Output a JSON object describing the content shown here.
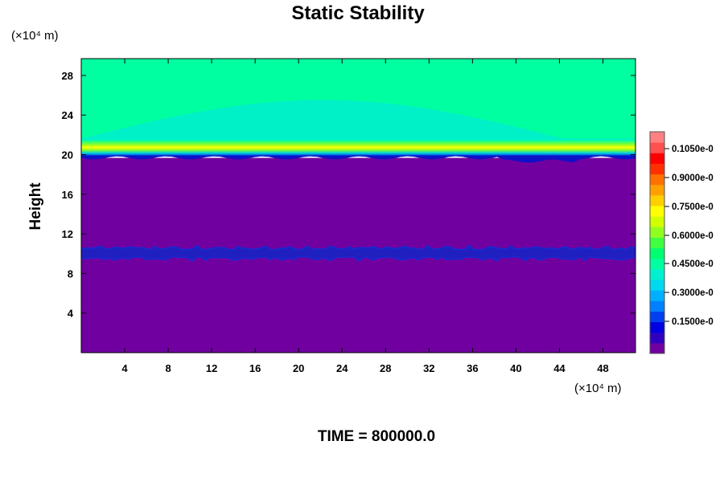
{
  "chart_data": {
    "type": "heatmap",
    "title": "Static Stability",
    "ylabel": "Height",
    "x_unit": "(×10⁴ m)",
    "y_unit": "(×10⁴ m)",
    "footer": "TIME = 800000.0",
    "xlim": [
      0,
      51
    ],
    "ylim": [
      0,
      29.7
    ],
    "x_ticks": [
      4,
      8,
      12,
      16,
      20,
      24,
      28,
      32,
      36,
      40,
      44,
      48
    ],
    "y_ticks": [
      4,
      8,
      12,
      16,
      20,
      24,
      28
    ],
    "colorbar": {
      "labels": [
        "0.1050e-0",
        "0.9000e-0",
        "0.7500e-0",
        "0.6000e-0",
        "0.4500e-0",
        "0.3000e-0",
        "0.1500e-0"
      ],
      "colors": [
        "#7000a0",
        "#3000c0",
        "#0000e0",
        "#0040f0",
        "#0080ff",
        "#00b0ff",
        "#00d8f0",
        "#00f0d0",
        "#00ffa0",
        "#00ff70",
        "#40ff40",
        "#90ff20",
        "#d0ff00",
        "#ffff00",
        "#ffd000",
        "#ffa000",
        "#ff7000",
        "#ff3000",
        "#ff0000",
        "#ff5050",
        "#ff8080"
      ]
    },
    "fields": {
      "lower_layer_color": "#7000a0",
      "upper_layer_color": "#00ffa0",
      "tropopause_height": 20,
      "inner_band_height": 10
    }
  }
}
